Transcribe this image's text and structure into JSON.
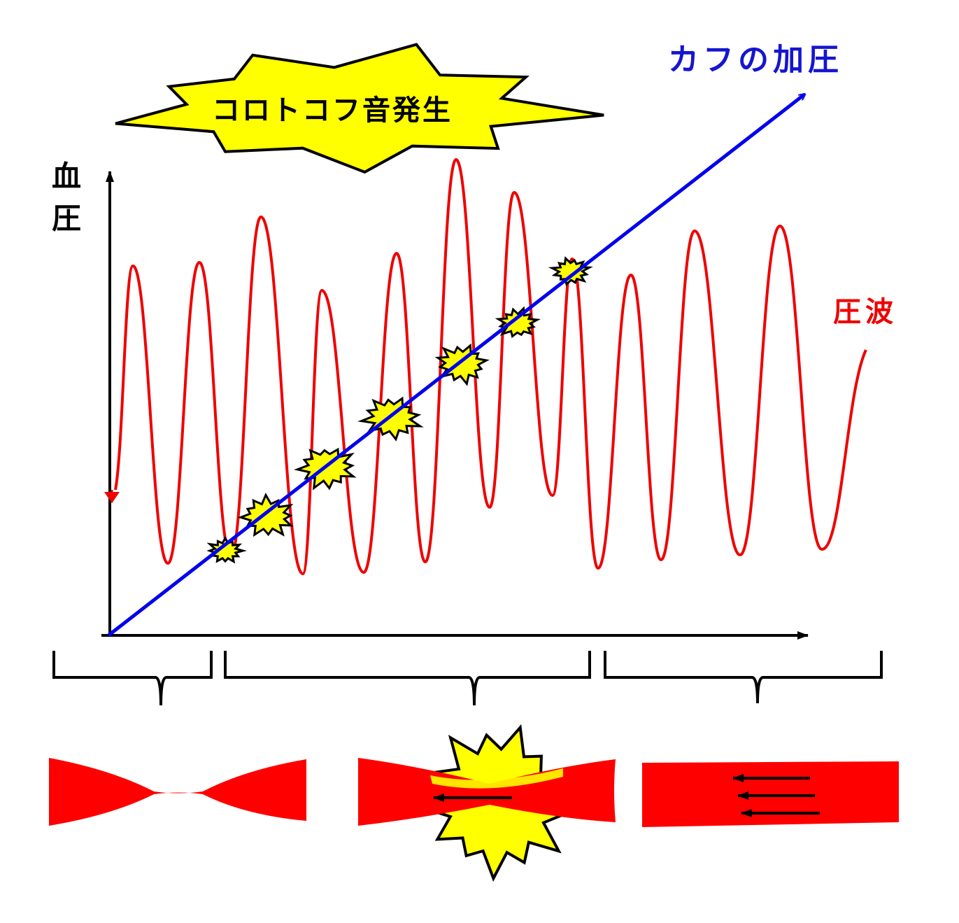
{
  "burst_label": "コロトコフ音発生",
  "cuff_label": "カフの加圧",
  "y_axis_label": [
    "血",
    "圧"
  ],
  "wave_label": "圧波"
}
